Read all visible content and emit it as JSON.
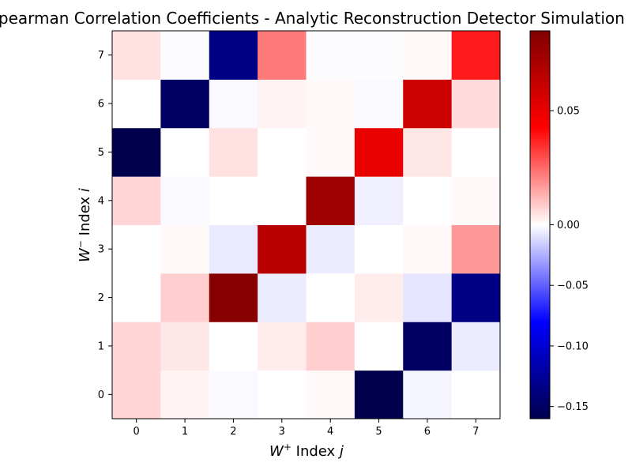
{
  "chart_data": {
    "type": "heatmap",
    "title": "Spearman Correlation Coefficients - Analytic Reconstruction Detector Simulation",
    "xlabel": {
      "main": "W",
      "sup": "+",
      "rest": " Index ",
      "var": "j"
    },
    "ylabel": {
      "main": "W",
      "sup": "−",
      "rest": " Index ",
      "var": "i"
    },
    "x_ticks": [
      "0",
      "1",
      "2",
      "3",
      "4",
      "5",
      "6",
      "7"
    ],
    "y_ticks": [
      "0",
      "1",
      "2",
      "3",
      "4",
      "5",
      "6",
      "7"
    ],
    "colormap": "seismic",
    "vmin": -0.16,
    "vmax": 0.085,
    "colorbar_ticks": [
      {
        "value": 0.05,
        "label": "0.05"
      },
      {
        "value": 0.0,
        "label": "0.00"
      },
      {
        "value": -0.05,
        "label": "−0.05"
      },
      {
        "value": -0.1,
        "label": "−0.10"
      },
      {
        "value": -0.15,
        "label": "−0.15"
      }
    ],
    "matrix_rows_i_from_0": [
      [
        0.007,
        0.002,
        -0.002,
        0.0,
        0.001,
        -0.16,
        -0.003,
        0.0
      ],
      [
        0.007,
        0.004,
        0.0,
        0.003,
        0.008,
        0.0,
        -0.15,
        -0.006
      ],
      [
        0.0,
        0.008,
        0.083,
        -0.006,
        0.0,
        0.003,
        -0.008,
        -0.135
      ],
      [
        0.0,
        0.001,
        -0.007,
        0.067,
        -0.006,
        0.0,
        0.001,
        0.017
      ],
      [
        0.007,
        -0.002,
        0.0,
        0.0,
        0.075,
        -0.005,
        0.0,
        0.001
      ],
      [
        -0.16,
        0.0,
        0.005,
        0.0,
        0.001,
        0.05,
        0.004,
        0.0
      ],
      [
        0.0,
        -0.15,
        -0.002,
        0.002,
        0.001,
        -0.002,
        0.06,
        0.006
      ],
      [
        0.005,
        -0.001,
        -0.135,
        0.022,
        -0.001,
        -0.001,
        0.001,
        0.038
      ]
    ]
  }
}
